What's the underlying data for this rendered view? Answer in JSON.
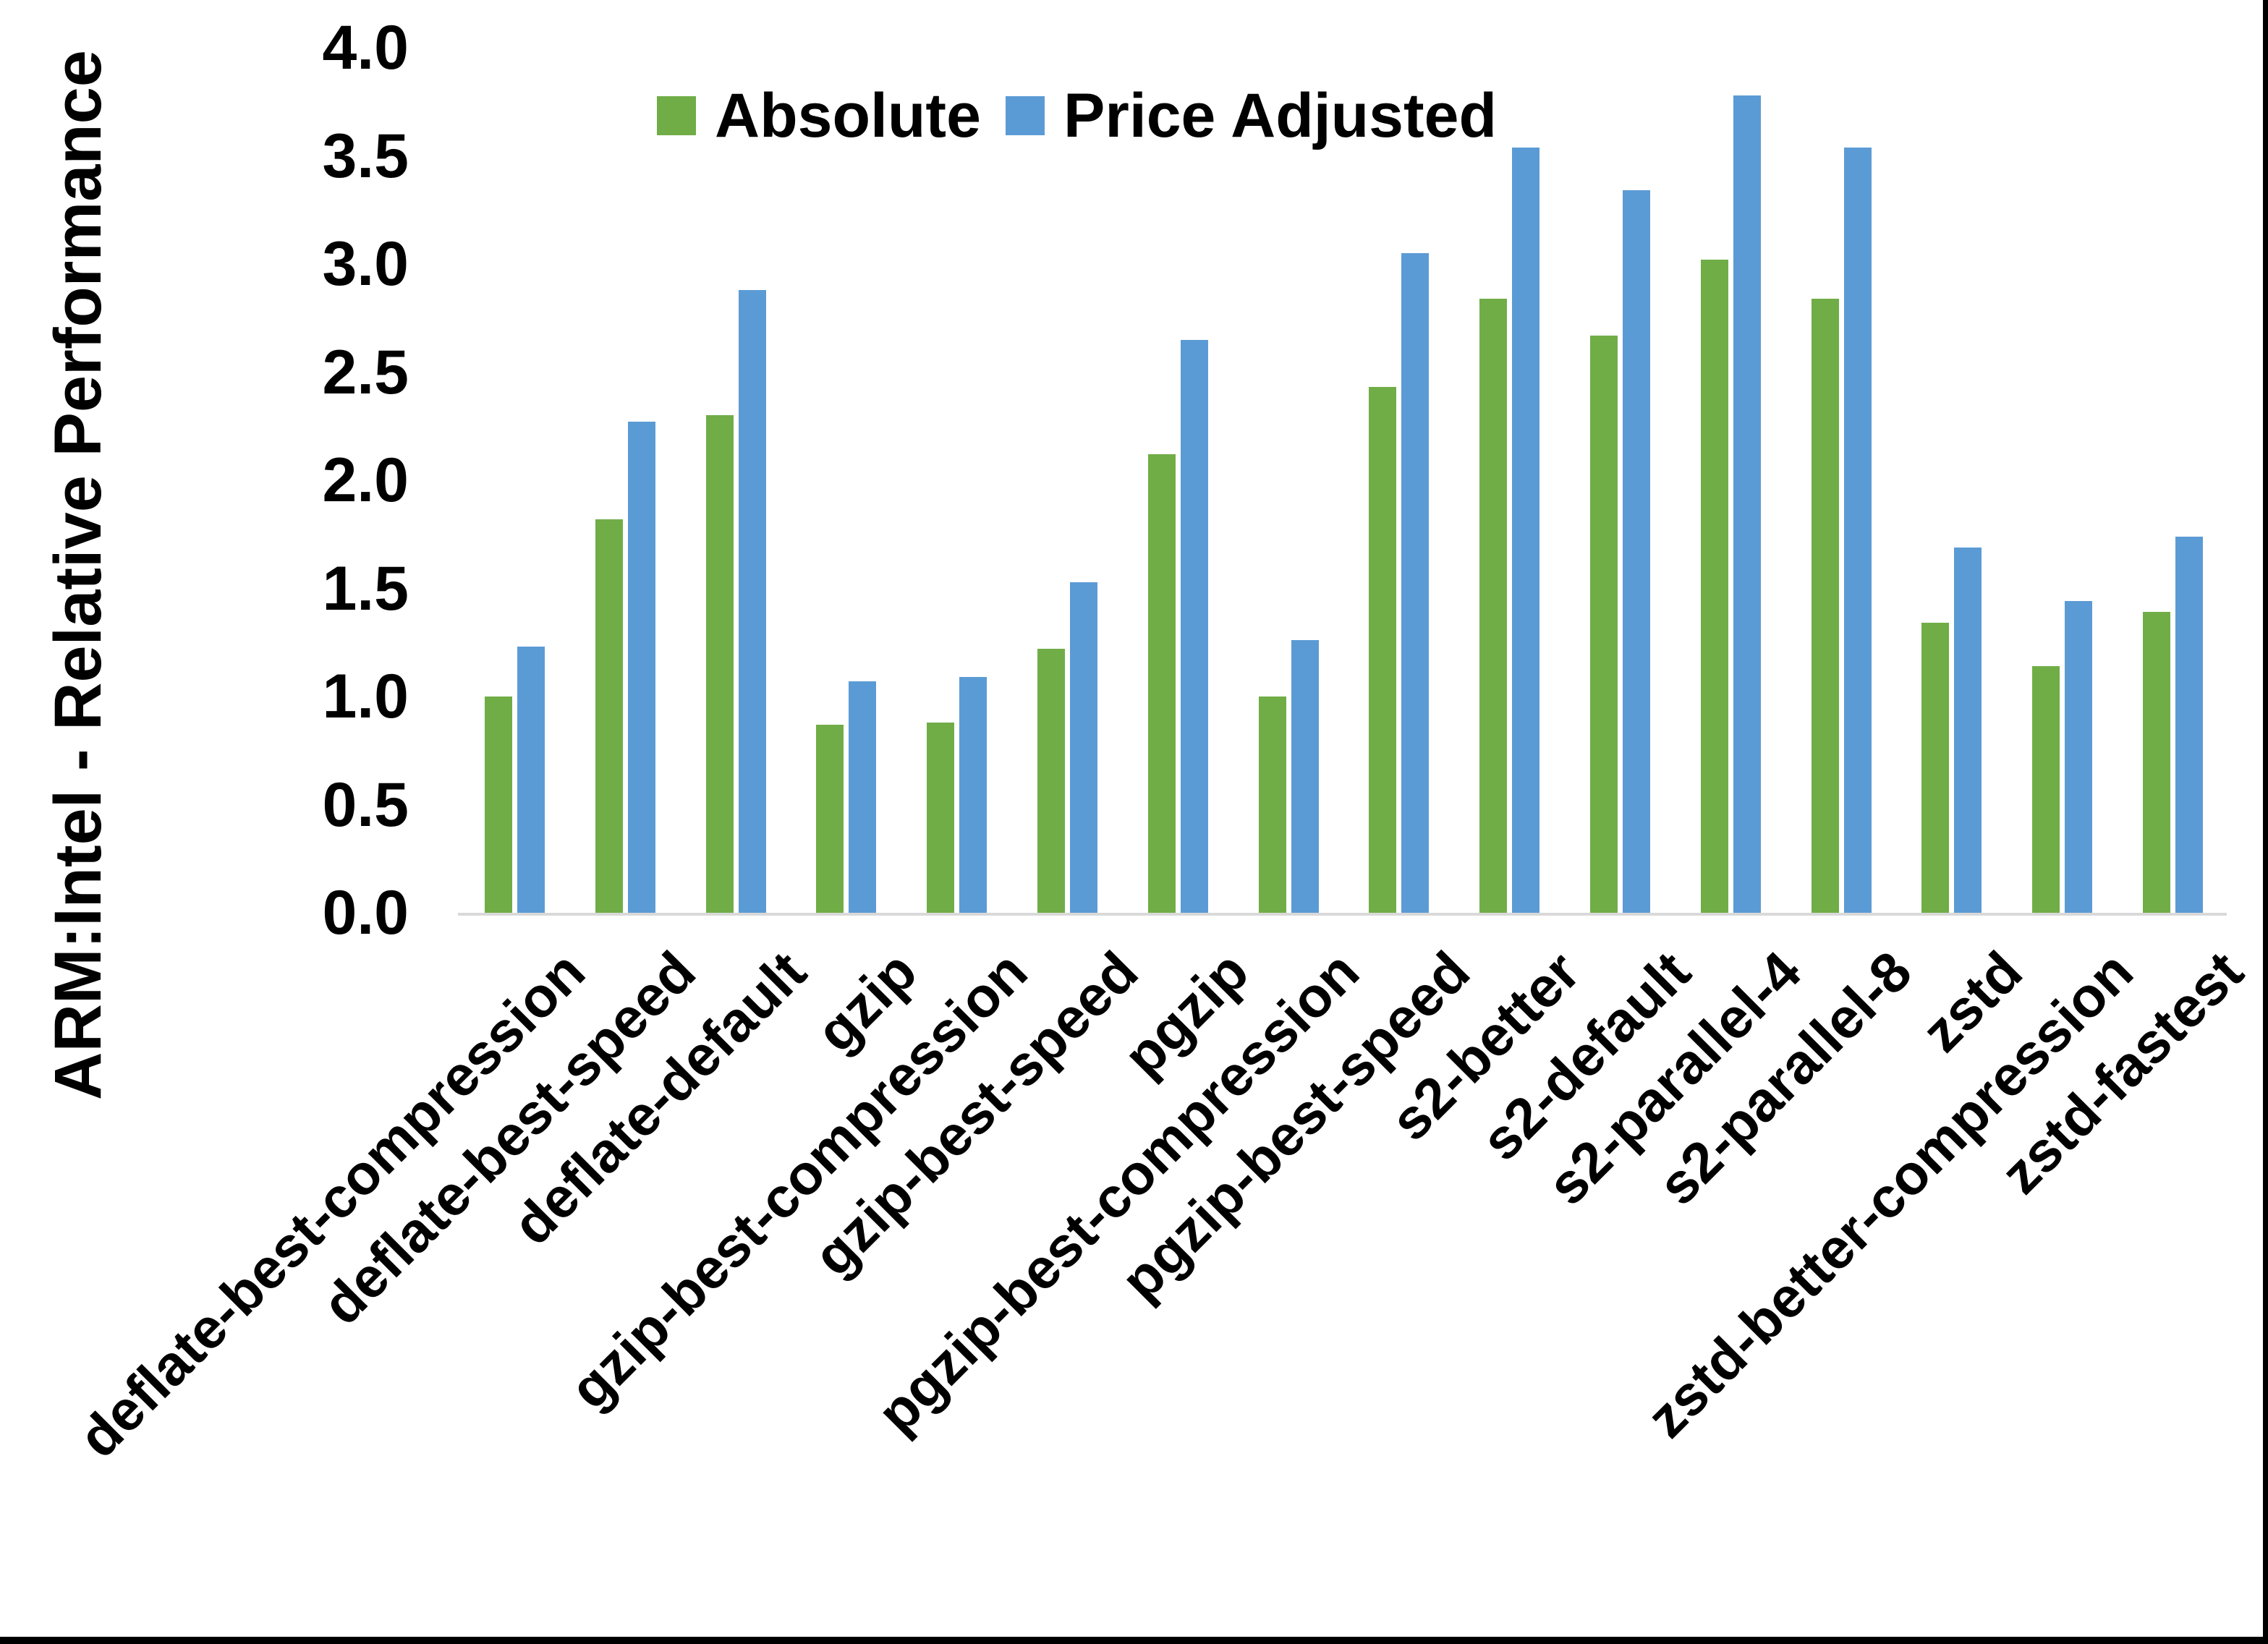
{
  "chart_data": {
    "type": "bar",
    "title": "",
    "xlabel": "",
    "ylabel": "ARM:Intel - Relative Performance",
    "ylim": [
      0.0,
      4.0
    ],
    "y_ticks": [
      "0.0",
      "0.5",
      "1.0",
      "1.5",
      "2.0",
      "2.5",
      "3.0",
      "3.5",
      "4.0"
    ],
    "grid": false,
    "legend_position": "top",
    "categories": [
      "deflate-best-compression",
      "deflate-best-speed",
      "deflate-default",
      "gzip",
      "gzip-best-compression",
      "gzip-best-speed",
      "pgzip",
      "pgzip-best-compression",
      "pgzip-best-speed",
      "s2-better",
      "s2-default",
      "s2-parallel-4",
      "s2-parallel-8",
      "zstd",
      "zstd-better-compression",
      "zstd-fastest"
    ],
    "series": [
      {
        "name": "Absolute",
        "color": "#70AD47",
        "values": [
          1.0,
          1.82,
          2.3,
          0.87,
          0.88,
          1.22,
          2.12,
          1.0,
          2.43,
          2.84,
          2.67,
          3.02,
          2.84,
          1.34,
          1.14,
          1.39
        ]
      },
      {
        "name": "Price Adjusted",
        "color": "#5B9BD5",
        "values": [
          1.23,
          2.27,
          2.88,
          1.07,
          1.09,
          1.53,
          2.65,
          1.26,
          3.05,
          3.54,
          3.34,
          3.78,
          3.54,
          1.69,
          1.44,
          1.74
        ]
      }
    ]
  },
  "colors": {
    "background": "#FFFFFF",
    "axis_line": "#D9D9D9",
    "text": "#000000",
    "frame": "#000000"
  }
}
